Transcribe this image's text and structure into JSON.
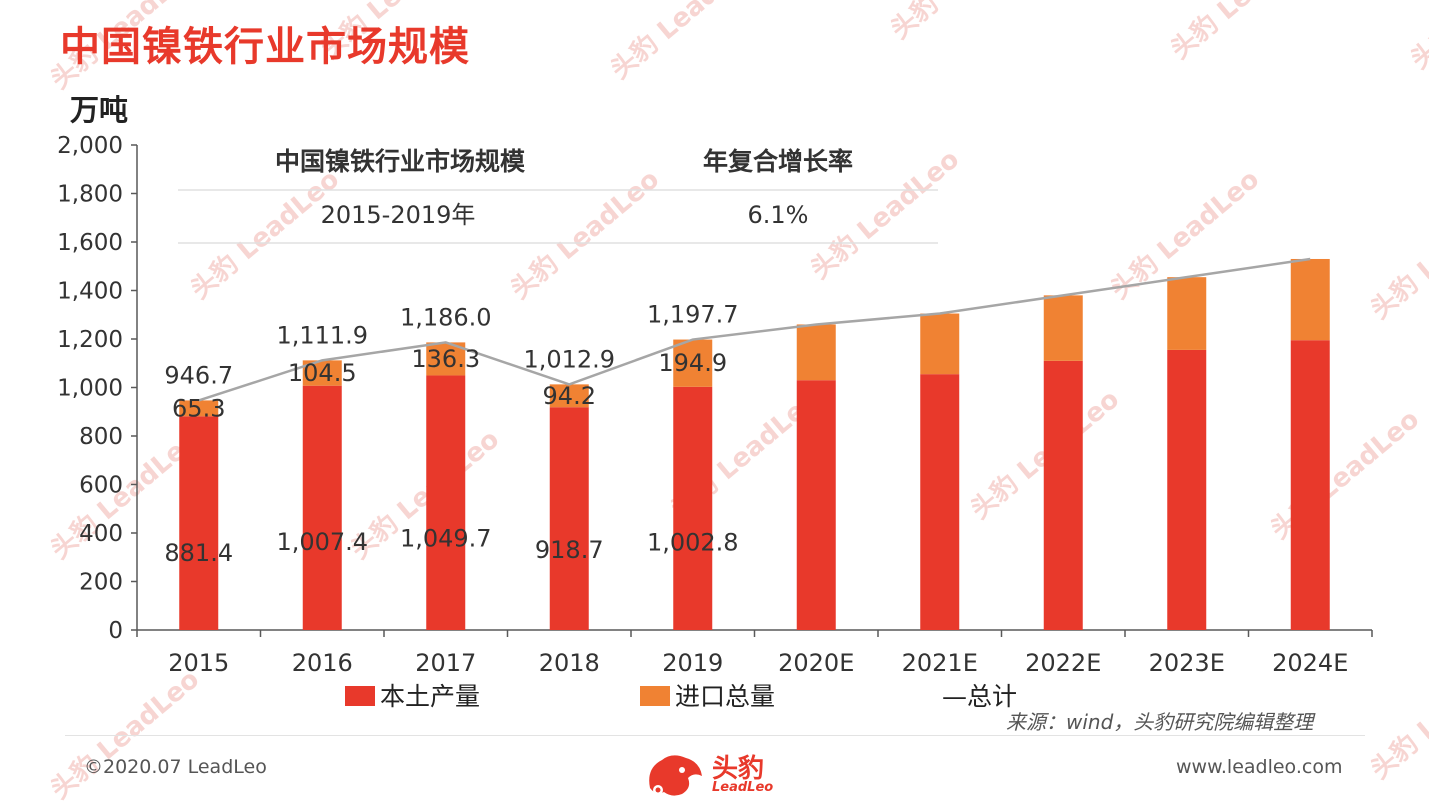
{
  "page": {
    "title": "中国镍铁行业市场规模",
    "source": "来源：wind，头豹研究院编辑整理",
    "copyright": "©2020.07 LeadLeo",
    "website": "www.leadleo.com",
    "logo_cn": "头豹",
    "logo_en": "LeadLeo",
    "watermark": "头豹 LeadLeo"
  },
  "chart_data": {
    "type": "bar",
    "stacked": true,
    "ylabel": "万吨",
    "ylim": [
      0,
      2000
    ],
    "yticks": [
      0,
      200,
      400,
      600,
      800,
      1000,
      1200,
      1400,
      1600,
      1800,
      2000
    ],
    "ytick_labels": [
      "0",
      "200",
      "400",
      "600",
      "800",
      "1,000",
      "1,200",
      "1,400",
      "1,600",
      "1,800",
      "2,000"
    ],
    "categories": [
      "2015",
      "2016",
      "2017",
      "2018",
      "2019",
      "2020E",
      "2021E",
      "2022E",
      "2023E",
      "2024E"
    ],
    "series": [
      {
        "name": "本土产量",
        "color": "#e8392b",
        "values": [
          881.4,
          1007.4,
          1049.7,
          918.7,
          1002.8,
          1030,
          1055,
          1110,
          1155,
          1195
        ],
        "labels": [
          "881.4",
          "1,007.4",
          "1,049.7",
          "918.7",
          "1,002.8",
          "",
          "",
          "",
          "",
          ""
        ]
      },
      {
        "name": "进口总量",
        "color": "#f08233",
        "values": [
          65.3,
          104.5,
          136.3,
          94.2,
          194.9,
          230,
          250,
          270,
          300,
          335
        ],
        "labels": [
          "65.3",
          "104.5",
          "136.3",
          "94.2",
          "194.9",
          "",
          "",
          "",
          "",
          ""
        ]
      }
    ],
    "total": {
      "name": "—总计",
      "color": "#a6a6a6",
      "values": [
        946.7,
        1111.9,
        1186.0,
        1012.9,
        1197.7,
        1260,
        1305,
        1380,
        1455,
        1530
      ],
      "labels": [
        "946.7",
        "1,111.9",
        "1,186.0",
        "1,012.9",
        "1,197.7",
        "",
        "",
        "",
        "",
        ""
      ]
    },
    "inset_table": {
      "headers": [
        "中国镍铁行业市场规模",
        "年复合增长率"
      ],
      "row": [
        "2015-2019年",
        "6.1%"
      ]
    },
    "legend_position": "bottom",
    "grid": false
  }
}
